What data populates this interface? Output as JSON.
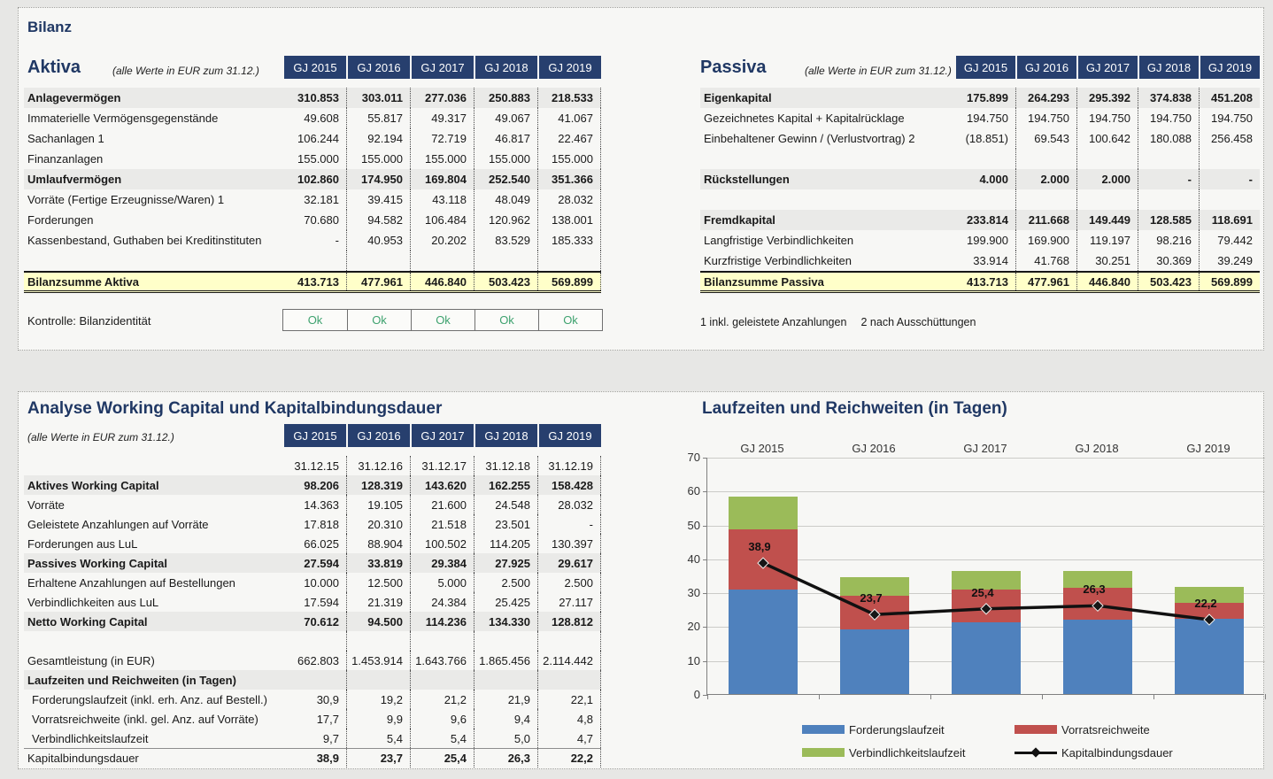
{
  "bilanz": {
    "title": "Bilanz",
    "aktiva": {
      "title": "Aktiva",
      "subtitle": "(alle Werte in EUR zum 31.12.)",
      "years": [
        "GJ 2015",
        "GJ 2016",
        "GJ 2017",
        "GJ 2018",
        "GJ 2019"
      ],
      "rows": [
        {
          "label": "Anlagevermögen",
          "style": "sec",
          "values": [
            "310.853",
            "303.011",
            "277.036",
            "250.883",
            "218.533"
          ]
        },
        {
          "label": "Immaterielle Vermögensgegenstände",
          "style": "",
          "values": [
            "49.608",
            "55.817",
            "49.317",
            "49.067",
            "41.067"
          ]
        },
        {
          "label": "Sachanlagen  1",
          "style": "",
          "values": [
            "106.244",
            "92.194",
            "72.719",
            "46.817",
            "22.467"
          ]
        },
        {
          "label": "Finanzanlagen",
          "style": "",
          "values": [
            "155.000",
            "155.000",
            "155.000",
            "155.000",
            "155.000"
          ]
        },
        {
          "label": "Umlaufvermögen",
          "style": "sec",
          "values": [
            "102.860",
            "174.950",
            "169.804",
            "252.540",
            "351.366"
          ]
        },
        {
          "label": "Vorräte (Fertige Erzeugnisse/Waren) 1",
          "style": "",
          "values": [
            "32.181",
            "39.415",
            "43.118",
            "48.049",
            "28.032"
          ]
        },
        {
          "label": "Forderungen",
          "style": "",
          "values": [
            "70.680",
            "94.582",
            "106.484",
            "120.962",
            "138.001"
          ]
        },
        {
          "label": "Kassenbestand, Guthaben bei Kreditinstituten",
          "style": "",
          "values": [
            "-",
            "40.953",
            "20.202",
            "83.529",
            "185.333"
          ]
        },
        {
          "label": "",
          "style": "blank",
          "values": [
            "",
            "",
            "",
            "",
            ""
          ]
        },
        {
          "label": "Bilanzsumme Aktiva",
          "style": "tot",
          "values": [
            "413.713",
            "477.961",
            "446.840",
            "503.423",
            "569.899"
          ]
        }
      ],
      "control": {
        "label": "Kontrolle: Bilanzidentität",
        "values": [
          "Ok",
          "Ok",
          "Ok",
          "Ok",
          "Ok"
        ],
        "ok_color": "#3ea26f"
      }
    },
    "passiva": {
      "title": "Passiva",
      "subtitle": "(alle Werte in EUR zum 31.12.)",
      "years": [
        "GJ 2015",
        "GJ 2016",
        "GJ 2017",
        "GJ 2018",
        "GJ 2019"
      ],
      "rows": [
        {
          "label": "Eigenkapital",
          "style": "sec",
          "values": [
            "175.899",
            "264.293",
            "295.392",
            "374.838",
            "451.208"
          ]
        },
        {
          "label": "Gezeichnetes Kapital + Kapitalrücklage",
          "style": "",
          "values": [
            "194.750",
            "194.750",
            "194.750",
            "194.750",
            "194.750"
          ]
        },
        {
          "label": "Einbehaltener Gewinn / (Verlustvortrag)  2",
          "style": "",
          "values": [
            "(18.851)",
            "69.543",
            "100.642",
            "180.088",
            "256.458"
          ]
        },
        {
          "label": "",
          "style": "blank",
          "values": [
            "",
            "",
            "",
            "",
            ""
          ]
        },
        {
          "label": "Rückstellungen",
          "style": "sec",
          "values": [
            "4.000",
            "2.000",
            "2.000",
            "-",
            "-"
          ]
        },
        {
          "label": "",
          "style": "blank",
          "values": [
            "",
            "",
            "",
            "",
            ""
          ]
        },
        {
          "label": "Fremdkapital",
          "style": "sec",
          "values": [
            "233.814",
            "211.668",
            "149.449",
            "128.585",
            "118.691"
          ]
        },
        {
          "label": "Langfristige Verbindlichkeiten",
          "style": "",
          "values": [
            "199.900",
            "169.900",
            "119.197",
            "98.216",
            "79.442"
          ]
        },
        {
          "label": "Kurzfristige Verbindlichkeiten",
          "style": "",
          "values": [
            "33.914",
            "41.768",
            "30.251",
            "30.369",
            "39.249"
          ]
        },
        {
          "label": "Bilanzsumme Passiva",
          "style": "tot",
          "values": [
            "413.713",
            "477.961",
            "446.840",
            "503.423",
            "569.899"
          ]
        }
      ],
      "footnotes": [
        "1 inkl. geleistete Anzahlungen",
        "2 nach Ausschüttungen"
      ]
    }
  },
  "working_capital": {
    "title": "Analyse Working Capital und Kapitalbindungsdauer",
    "subtitle": "(alle Werte in EUR zum 31.12.)",
    "years": [
      "GJ 2015",
      "GJ 2016",
      "GJ 2017",
      "GJ 2018",
      "GJ 2019"
    ],
    "dates": [
      "31.12.15",
      "31.12.16",
      "31.12.17",
      "31.12.18",
      "31.12.19"
    ],
    "rows": [
      {
        "label": "Aktives Working Capital",
        "style": "sec",
        "values": [
          "98.206",
          "128.319",
          "143.620",
          "162.255",
          "158.428"
        ]
      },
      {
        "label": "Vorräte",
        "style": "",
        "values": [
          "14.363",
          "19.105",
          "21.600",
          "24.548",
          "28.032"
        ]
      },
      {
        "label": "Geleistete Anzahlungen auf Vorräte",
        "style": "",
        "values": [
          "17.818",
          "20.310",
          "21.518",
          "23.501",
          "-"
        ]
      },
      {
        "label": "Forderungen aus LuL",
        "style": "",
        "values": [
          "66.025",
          "88.904",
          "100.502",
          "114.205",
          "130.397"
        ]
      },
      {
        "label": "Passives Working Capital",
        "style": "sec",
        "values": [
          "27.594",
          "33.819",
          "29.384",
          "27.925",
          "29.617"
        ]
      },
      {
        "label": "Erhaltene Anzahlungen auf Bestellungen",
        "style": "",
        "values": [
          "10.000",
          "12.500",
          "5.000",
          "2.500",
          "2.500"
        ]
      },
      {
        "label": "Verbindlichkeiten aus LuL",
        "style": "",
        "values": [
          "17.594",
          "21.319",
          "24.384",
          "25.425",
          "27.117"
        ]
      },
      {
        "label": "Netto Working Capital",
        "style": "sec",
        "values": [
          "70.612",
          "94.500",
          "114.236",
          "134.330",
          "128.812"
        ]
      },
      {
        "label": "",
        "style": "blank",
        "values": [
          "",
          "",
          "",
          "",
          ""
        ]
      },
      {
        "label": "Gesamtleistung (in EUR)",
        "style": "",
        "values": [
          "662.803",
          "1.453.914",
          "1.643.766",
          "1.865.456",
          "2.114.442"
        ]
      },
      {
        "label": "Laufzeiten und Reichweiten (in Tagen)",
        "style": "subhead",
        "values": [
          "",
          "",
          "",
          "",
          ""
        ]
      },
      {
        "label": "Forderungslaufzeit (inkl. erh. Anz. auf Bestell.)",
        "style": "kpi",
        "values": [
          "30,9",
          "19,2",
          "21,2",
          "21,9",
          "22,1"
        ]
      },
      {
        "label": "Vorratsreichweite (inkl. gel. Anz. auf Vorräte)",
        "style": "kpi",
        "values": [
          "17,7",
          "9,9",
          "9,6",
          "9,4",
          "4,8"
        ]
      },
      {
        "label": "Verbindlichkeitslaufzeit",
        "style": "kpi",
        "values": [
          "9,7",
          "5,4",
          "5,4",
          "5,0",
          "4,7"
        ]
      },
      {
        "label": "Kapitalbindungsdauer",
        "style": "kpt",
        "values": [
          "38,9",
          "23,7",
          "25,4",
          "26,3",
          "22,2"
        ]
      }
    ]
  },
  "chart": {
    "title": "Laufzeiten und Reichweiten (in Tagen)"
  },
  "chart_data": {
    "type": "bar",
    "stacked": true,
    "categories": [
      "GJ 2015",
      "GJ 2016",
      "GJ 2017",
      "GJ 2018",
      "GJ 2019"
    ],
    "series": [
      {
        "name": "Forderungslaufzeit",
        "kind": "bar",
        "color": "#4f81bd",
        "values": [
          30.9,
          19.2,
          21.2,
          21.9,
          22.1
        ]
      },
      {
        "name": "Vorratsreichweite",
        "kind": "bar",
        "color": "#c0504d",
        "values": [
          17.7,
          9.9,
          9.6,
          9.4,
          4.8
        ]
      },
      {
        "name": "Verbindlichkeitslaufzeit",
        "kind": "bar",
        "color": "#9bbb59",
        "values": [
          9.7,
          5.4,
          5.4,
          5.0,
          4.7
        ]
      },
      {
        "name": "Kapitalbindungsdauer",
        "kind": "line",
        "color": "#111111",
        "values": [
          38.9,
          23.7,
          25.4,
          26.3,
          22.2
        ],
        "labels": [
          "38,9",
          "23,7",
          "25,4",
          "26,3",
          "22,2"
        ]
      }
    ],
    "title": "Laufzeiten und Reichweiten (in Tagen)",
    "xlabel": "",
    "ylabel": "",
    "ylim": [
      0,
      70
    ],
    "yticks": [
      0,
      10,
      20,
      30,
      40,
      50,
      60,
      70
    ],
    "grid": true,
    "legend_position": "bottom"
  }
}
